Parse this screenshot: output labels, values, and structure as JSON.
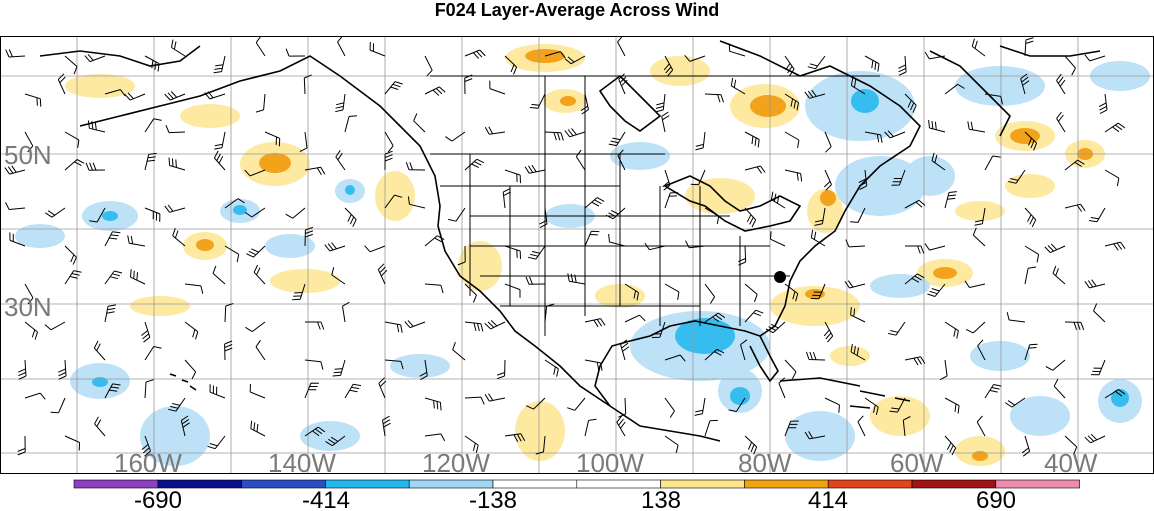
{
  "title": "F024 Layer-Average Across Wind",
  "map": {
    "lat_labels": [
      "50N",
      "30N"
    ],
    "lon_labels": [
      "160W",
      "140W",
      "120W",
      "100W",
      "80W",
      "60W",
      "40W"
    ],
    "marker": "station-dot"
  },
  "colorbar": {
    "tick_labels": [
      "-690",
      "-414",
      "-138",
      "138",
      "414",
      "690"
    ],
    "colors": [
      "#8e3fc0",
      "#0c0f8c",
      "#2b4fc2",
      "#21b8f0",
      "#9fd6f5",
      "#ffffff",
      "#ffffff",
      "#fde58a",
      "#f2a20f",
      "#e2441b",
      "#a11212",
      "#f08bb0"
    ]
  },
  "colors": {
    "neg_light": "#bde1f6",
    "neg_mid": "#36bdf0",
    "pos_light": "#fde9a0",
    "pos_mid": "#f3a21b",
    "pos_high": "#e2441b"
  }
}
